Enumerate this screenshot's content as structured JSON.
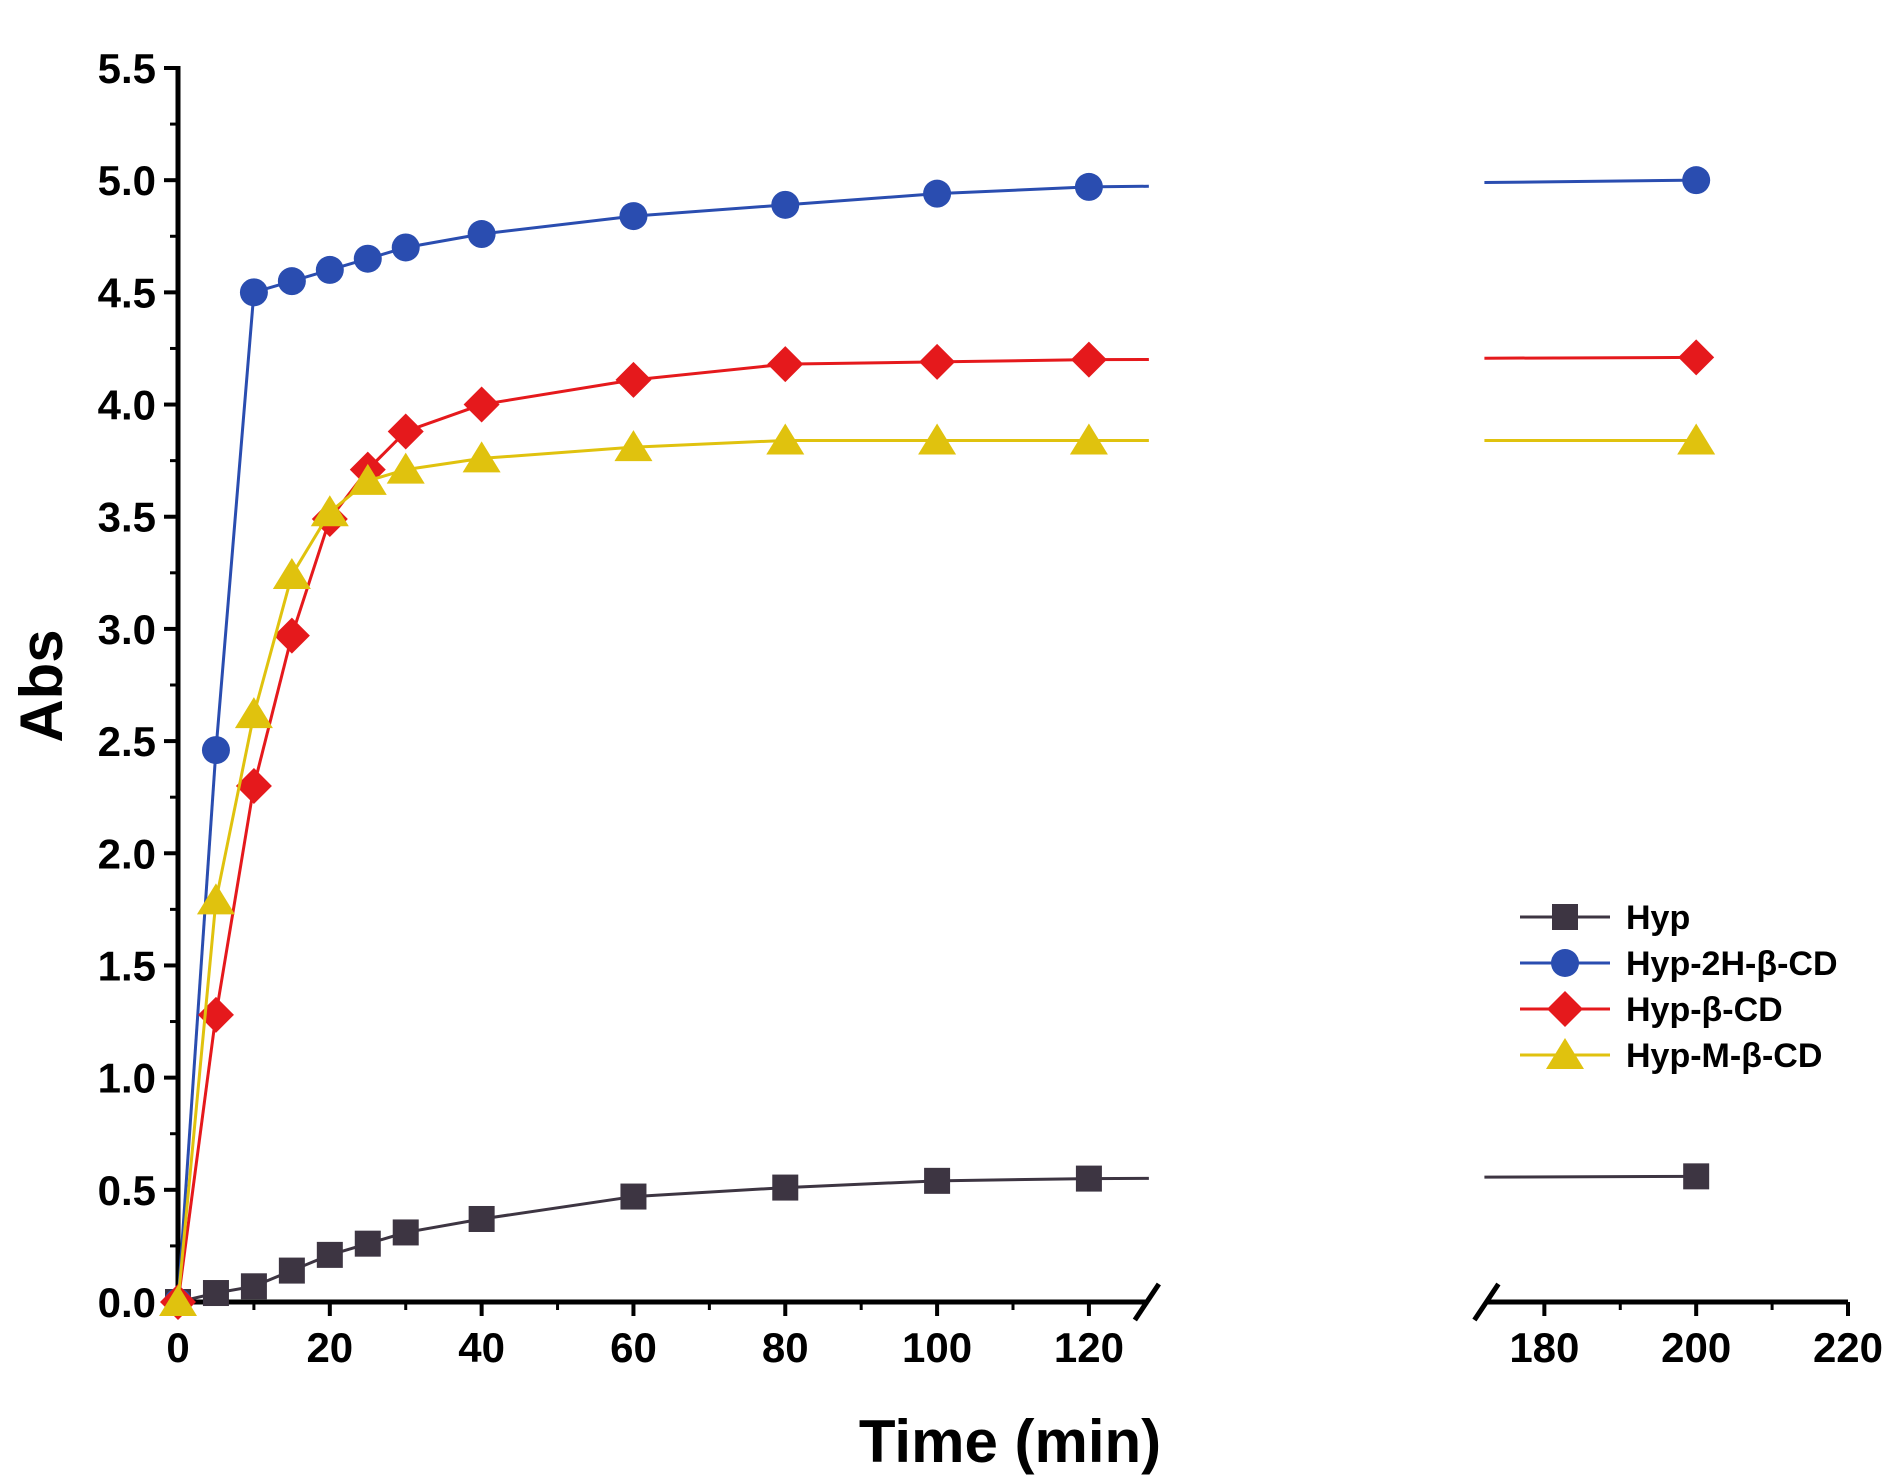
{
  "chart_data": {
    "type": "line",
    "title": "",
    "xlabel": "Time (min)",
    "ylabel": "Abs",
    "xlim": [
      0,
      220
    ],
    "ylim": [
      0,
      5.5
    ],
    "axis_break": {
      "from": 125,
      "to": 175
    },
    "x_ticks": [
      {
        "value": 0,
        "label": "0"
      },
      {
        "value": 20,
        "label": "20"
      },
      {
        "value": 40,
        "label": "40"
      },
      {
        "value": 60,
        "label": "60"
      },
      {
        "value": 80,
        "label": "80"
      },
      {
        "value": 100,
        "label": "100"
      },
      {
        "value": 120,
        "label": "120"
      },
      {
        "value": 180,
        "label": "180"
      },
      {
        "value": 200,
        "label": "200"
      },
      {
        "value": 220,
        "label": "220"
      }
    ],
    "x_minor_ticks": [
      10,
      30,
      50,
      70,
      90,
      110,
      190,
      210
    ],
    "y_ticks": [
      {
        "value": 0.0,
        "label": "0.0"
      },
      {
        "value": 0.5,
        "label": "0.5"
      },
      {
        "value": 1.0,
        "label": "1.0"
      },
      {
        "value": 1.5,
        "label": "1.5"
      },
      {
        "value": 2.0,
        "label": "2.0"
      },
      {
        "value": 2.5,
        "label": "2.5"
      },
      {
        "value": 3.0,
        "label": "3.0"
      },
      {
        "value": 3.5,
        "label": "3.5"
      },
      {
        "value": 4.0,
        "label": "4.0"
      },
      {
        "value": 4.5,
        "label": "4.5"
      },
      {
        "value": 5.0,
        "label": "5.0"
      },
      {
        "value": 5.5,
        "label": "5.5"
      }
    ],
    "y_minor_ticks": [
      0.25,
      0.75,
      1.25,
      1.75,
      2.25,
      2.75,
      3.25,
      3.75,
      4.25,
      4.75,
      5.25
    ],
    "legend_position": "right-middle",
    "x": [
      0,
      5,
      10,
      15,
      20,
      25,
      30,
      40,
      60,
      80,
      100,
      120,
      200
    ],
    "series": [
      {
        "name": "Hyp",
        "color": "#3d3542",
        "marker": "square",
        "values": [
          0.0,
          0.04,
          0.07,
          0.14,
          0.21,
          0.26,
          0.31,
          0.37,
          0.47,
          0.51,
          0.54,
          0.55,
          0.56
        ]
      },
      {
        "name": "Hyp-2H-β-CD",
        "color": "#2a4db0",
        "marker": "circle",
        "values": [
          0.0,
          2.46,
          4.5,
          4.55,
          4.6,
          4.65,
          4.7,
          4.76,
          4.84,
          4.89,
          4.94,
          4.97,
          5.0
        ]
      },
      {
        "name": "Hyp-β-CD",
        "color": "#e5191c",
        "marker": "diamond",
        "values": [
          0.0,
          1.28,
          2.3,
          2.97,
          3.49,
          3.71,
          3.88,
          4.0,
          4.11,
          4.18,
          4.19,
          4.2,
          4.21
        ]
      },
      {
        "name": "Hyp-M-β-CD",
        "color": "#e0c20e",
        "marker": "triangle",
        "values": [
          0.0,
          1.79,
          2.62,
          3.24,
          3.52,
          3.66,
          3.71,
          3.76,
          3.81,
          3.84,
          3.84,
          3.84,
          3.84
        ]
      }
    ]
  }
}
